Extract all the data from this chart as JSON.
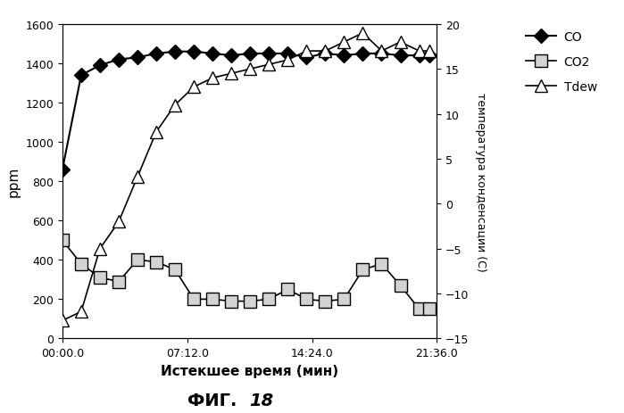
{
  "title": "ФИГ. 18",
  "xlabel": "Истекшее время (мин)",
  "ylabel_left": "ppm",
  "ylabel_right": "температура конденсации (С)",
  "xlim": [
    0,
    1296
  ],
  "ylim_left": [
    0,
    1600
  ],
  "ylim_right": [
    -15,
    20
  ],
  "xtick_positions": [
    0,
    432,
    864,
    1296
  ],
  "xtick_labels": [
    "00:00.0",
    "07:12.0",
    "14:24.0",
    "21:36.0"
  ],
  "ytick_left": [
    0,
    200,
    400,
    600,
    800,
    1000,
    1200,
    1400,
    1600
  ],
  "ytick_right": [
    -15,
    -10,
    -5,
    0,
    5,
    10,
    15,
    20
  ],
  "CO_x": [
    0,
    65,
    130,
    195,
    260,
    325,
    390,
    455,
    520,
    585,
    650,
    715,
    780,
    845,
    910,
    975,
    1040,
    1105,
    1170,
    1235,
    1270
  ],
  "CO_y": [
    860,
    1340,
    1390,
    1420,
    1430,
    1450,
    1460,
    1460,
    1450,
    1440,
    1450,
    1450,
    1450,
    1430,
    1450,
    1440,
    1450,
    1450,
    1440,
    1440,
    1440
  ],
  "CO2_x": [
    0,
    65,
    130,
    195,
    260,
    325,
    390,
    455,
    520,
    585,
    650,
    715,
    780,
    845,
    910,
    975,
    1040,
    1105,
    1170,
    1235,
    1270
  ],
  "CO2_y": [
    500,
    380,
    310,
    290,
    400,
    390,
    350,
    200,
    200,
    190,
    190,
    200,
    250,
    200,
    190,
    200,
    350,
    380,
    270,
    150,
    150
  ],
  "Tdew_x": [
    0,
    65,
    130,
    195,
    260,
    325,
    390,
    455,
    520,
    585,
    650,
    715,
    780,
    845,
    910,
    975,
    1040,
    1105,
    1170,
    1235,
    1270
  ],
  "Tdew_temp": [
    -13,
    -12,
    -5,
    -2,
    3,
    8,
    11,
    13,
    14,
    14.5,
    15,
    15.5,
    16,
    17,
    17,
    18,
    19,
    17,
    18,
    17,
    17
  ],
  "bg_color": "#ffffff"
}
